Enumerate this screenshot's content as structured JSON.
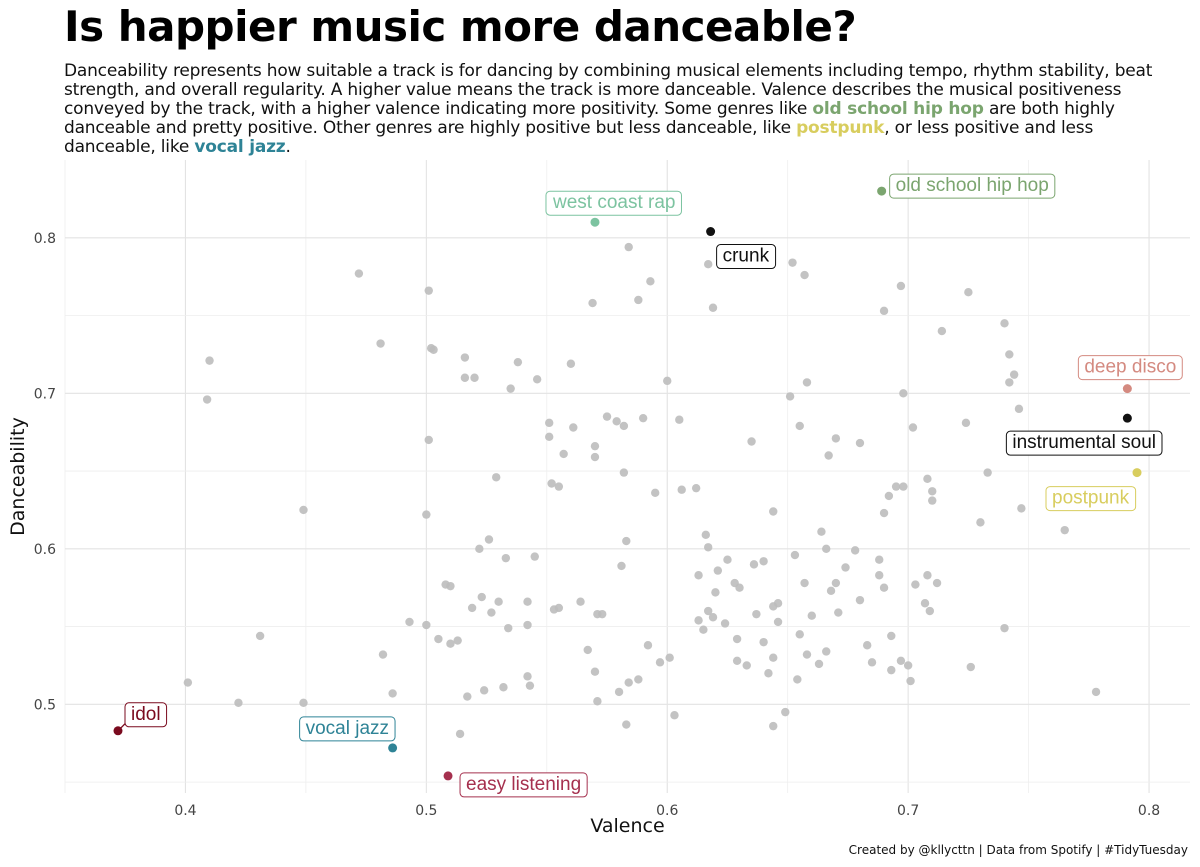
{
  "title": "Is happier music more danceable?",
  "subtitle": {
    "part1": "Danceability represents how suitable a track is for dancing by combining musical elements including tempo, rhythm stability, beat strength, and overall regularity. A higher value means the track is more danceable. Valence describes the musical positiveness conveyed by the track, with a higher valence indicating more positivity. Some genres like ",
    "hl1": "old school hip hop",
    "part2": " are both highly danceable and pretty positive. Other genres are highly positive but less danceable, like ",
    "hl2": "postpunk",
    "part3": ", or less positive and less danceable, like ",
    "hl3": "vocal jazz",
    "part4": "."
  },
  "caption": "Created by @kllycttn | Data from Spotify | #TidyTuesday",
  "colors": {
    "grey_points": "#bdbdbd",
    "old_school_hip_hop": "#7ba56f",
    "postpunk": "#d8cd5e",
    "vocal_jazz": "#2e8396",
    "west_coast_rap": "#7cc3a0",
    "deep_disco": "#d48a80",
    "easy_listening": "#a5304e",
    "idol": "#7a0a1e",
    "crunk": "#111111",
    "instrumental_soul": "#111111"
  },
  "chart_data": {
    "type": "scatter",
    "xlabel": "Valence",
    "ylabel": "Danceability",
    "xlim": [
      0.35,
      0.817
    ],
    "ylim": [
      0.443,
      0.85
    ],
    "xticks": [
      0.4,
      0.5,
      0.6,
      0.7,
      0.8
    ],
    "yticks": [
      0.5,
      0.6,
      0.7,
      0.8
    ],
    "xtick_labels": [
      "0.4",
      "0.5",
      "0.6",
      "0.7",
      "0.8"
    ],
    "ytick_labels": [
      "0.5",
      "0.6",
      "0.7",
      "0.8"
    ],
    "grid": true,
    "highlighted": [
      {
        "label": "old school hip hop",
        "x": 0.689,
        "y": 0.83,
        "color": "#7ba56f"
      },
      {
        "label": "west coast rap",
        "x": 0.57,
        "y": 0.81,
        "color": "#7cc3a0"
      },
      {
        "label": "crunk",
        "x": 0.618,
        "y": 0.804,
        "color": "#111111"
      },
      {
        "label": "deep disco",
        "x": 0.791,
        "y": 0.703,
        "color": "#d48a80"
      },
      {
        "label": "instrumental soul",
        "x": 0.791,
        "y": 0.684,
        "color": "#111111"
      },
      {
        "label": "postpunk",
        "x": 0.795,
        "y": 0.649,
        "color": "#d8cd5e"
      },
      {
        "label": "idol",
        "x": 0.372,
        "y": 0.483,
        "color": "#7a0a1e"
      },
      {
        "label": "vocal jazz",
        "x": 0.486,
        "y": 0.472,
        "color": "#2e8396"
      },
      {
        "label": "easy listening",
        "x": 0.509,
        "y": 0.454,
        "color": "#a5304e"
      }
    ],
    "points": [
      [
        0.472,
        0.777
      ],
      [
        0.41,
        0.721
      ],
      [
        0.409,
        0.696
      ],
      [
        0.501,
        0.766
      ],
      [
        0.481,
        0.732
      ],
      [
        0.502,
        0.729
      ],
      [
        0.503,
        0.728
      ],
      [
        0.516,
        0.723
      ],
      [
        0.516,
        0.71
      ],
      [
        0.52,
        0.71
      ],
      [
        0.538,
        0.72
      ],
      [
        0.535,
        0.703
      ],
      [
        0.546,
        0.709
      ],
      [
        0.56,
        0.719
      ],
      [
        0.501,
        0.67
      ],
      [
        0.551,
        0.681
      ],
      [
        0.551,
        0.672
      ],
      [
        0.561,
        0.678
      ],
      [
        0.557,
        0.661
      ],
      [
        0.57,
        0.666
      ],
      [
        0.57,
        0.659
      ],
      [
        0.575,
        0.685
      ],
      [
        0.579,
        0.682
      ],
      [
        0.582,
        0.679
      ],
      [
        0.59,
        0.684
      ],
      [
        0.584,
        0.794
      ],
      [
        0.593,
        0.772
      ],
      [
        0.588,
        0.76
      ],
      [
        0.569,
        0.758
      ],
      [
        0.617,
        0.783
      ],
      [
        0.619,
        0.755
      ],
      [
        0.652,
        0.784
      ],
      [
        0.657,
        0.776
      ],
      [
        0.6,
        0.708
      ],
      [
        0.605,
        0.683
      ],
      [
        0.582,
        0.649
      ],
      [
        0.552,
        0.642
      ],
      [
        0.555,
        0.64
      ],
      [
        0.529,
        0.646
      ],
      [
        0.449,
        0.625
      ],
      [
        0.522,
        0.6
      ],
      [
        0.526,
        0.606
      ],
      [
        0.533,
        0.594
      ],
      [
        0.508,
        0.577
      ],
      [
        0.519,
        0.562
      ],
      [
        0.523,
        0.569
      ],
      [
        0.527,
        0.559
      ],
      [
        0.53,
        0.566
      ],
      [
        0.542,
        0.566
      ],
      [
        0.542,
        0.551
      ],
      [
        0.534,
        0.549
      ],
      [
        0.545,
        0.595
      ],
      [
        0.555,
        0.562
      ],
      [
        0.564,
        0.566
      ],
      [
        0.571,
        0.558
      ],
      [
        0.573,
        0.558
      ],
      [
        0.581,
        0.589
      ],
      [
        0.583,
        0.605
      ],
      [
        0.595,
        0.636
      ],
      [
        0.606,
        0.638
      ],
      [
        0.612,
        0.639
      ],
      [
        0.616,
        0.609
      ],
      [
        0.617,
        0.601
      ],
      [
        0.613,
        0.583
      ],
      [
        0.613,
        0.554
      ],
      [
        0.621,
        0.586
      ],
      [
        0.625,
        0.593
      ],
      [
        0.628,
        0.578
      ],
      [
        0.636,
        0.59
      ],
      [
        0.64,
        0.592
      ],
      [
        0.644,
        0.624
      ],
      [
        0.635,
        0.669
      ],
      [
        0.651,
        0.698
      ],
      [
        0.655,
        0.679
      ],
      [
        0.658,
        0.707
      ],
      [
        0.653,
        0.596
      ],
      [
        0.657,
        0.578
      ],
      [
        0.66,
        0.557
      ],
      [
        0.664,
        0.611
      ],
      [
        0.666,
        0.6
      ],
      [
        0.67,
        0.578
      ],
      [
        0.668,
        0.573
      ],
      [
        0.667,
        0.66
      ],
      [
        0.67,
        0.671
      ],
      [
        0.68,
        0.668
      ],
      [
        0.674,
        0.588
      ],
      [
        0.678,
        0.599
      ],
      [
        0.688,
        0.593
      ],
      [
        0.692,
        0.634
      ],
      [
        0.695,
        0.64
      ],
      [
        0.698,
        0.64
      ],
      [
        0.697,
        0.769
      ],
      [
        0.69,
        0.753
      ],
      [
        0.698,
        0.7
      ],
      [
        0.702,
        0.678
      ],
      [
        0.708,
        0.645
      ],
      [
        0.71,
        0.637
      ],
      [
        0.71,
        0.631
      ],
      [
        0.714,
        0.74
      ],
      [
        0.725,
        0.765
      ],
      [
        0.724,
        0.681
      ],
      [
        0.73,
        0.617
      ],
      [
        0.74,
        0.745
      ],
      [
        0.742,
        0.725
      ],
      [
        0.742,
        0.707
      ],
      [
        0.744,
        0.712
      ],
      [
        0.746,
        0.69
      ],
      [
        0.747,
        0.626
      ],
      [
        0.733,
        0.649
      ],
      [
        0.765,
        0.612
      ],
      [
        0.74,
        0.549
      ],
      [
        0.778,
        0.508
      ],
      [
        0.69,
        0.623
      ],
      [
        0.688,
        0.583
      ],
      [
        0.69,
        0.575
      ],
      [
        0.703,
        0.577
      ],
      [
        0.708,
        0.583
      ],
      [
        0.712,
        0.578
      ],
      [
        0.707,
        0.565
      ],
      [
        0.709,
        0.56
      ],
      [
        0.693,
        0.522
      ],
      [
        0.697,
        0.528
      ],
      [
        0.7,
        0.525
      ],
      [
        0.701,
        0.515
      ],
      [
        0.683,
        0.538
      ],
      [
        0.693,
        0.544
      ],
      [
        0.685,
        0.527
      ],
      [
        0.726,
        0.524
      ],
      [
        0.68,
        0.567
      ],
      [
        0.666,
        0.534
      ],
      [
        0.671,
        0.559
      ],
      [
        0.655,
        0.545
      ],
      [
        0.658,
        0.532
      ],
      [
        0.663,
        0.526
      ],
      [
        0.654,
        0.516
      ],
      [
        0.646,
        0.565
      ],
      [
        0.644,
        0.563
      ],
      [
        0.646,
        0.553
      ],
      [
        0.644,
        0.53
      ],
      [
        0.649,
        0.495
      ],
      [
        0.644,
        0.486
      ],
      [
        0.629,
        0.542
      ],
      [
        0.633,
        0.525
      ],
      [
        0.629,
        0.528
      ],
      [
        0.624,
        0.552
      ],
      [
        0.615,
        0.548
      ],
      [
        0.617,
        0.56
      ],
      [
        0.619,
        0.556
      ],
      [
        0.62,
        0.572
      ],
      [
        0.63,
        0.575
      ],
      [
        0.637,
        0.558
      ],
      [
        0.64,
        0.54
      ],
      [
        0.642,
        0.52
      ],
      [
        0.603,
        0.493
      ],
      [
        0.601,
        0.53
      ],
      [
        0.597,
        0.527
      ],
      [
        0.592,
        0.538
      ],
      [
        0.588,
        0.516
      ],
      [
        0.584,
        0.514
      ],
      [
        0.58,
        0.508
      ],
      [
        0.583,
        0.487
      ],
      [
        0.57,
        0.521
      ],
      [
        0.571,
        0.502
      ],
      [
        0.567,
        0.535
      ],
      [
        0.553,
        0.561
      ],
      [
        0.542,
        0.518
      ],
      [
        0.543,
        0.512
      ],
      [
        0.532,
        0.511
      ],
      [
        0.524,
        0.509
      ],
      [
        0.517,
        0.505
      ],
      [
        0.513,
        0.541
      ],
      [
        0.51,
        0.539
      ],
      [
        0.51,
        0.576
      ],
      [
        0.505,
        0.542
      ],
      [
        0.5,
        0.551
      ],
      [
        0.493,
        0.553
      ],
      [
        0.482,
        0.532
      ],
      [
        0.486,
        0.507
      ],
      [
        0.449,
        0.501
      ],
      [
        0.422,
        0.501
      ],
      [
        0.431,
        0.544
      ],
      [
        0.401,
        0.514
      ],
      [
        0.514,
        0.481
      ],
      [
        0.5,
        0.622
      ]
    ]
  }
}
